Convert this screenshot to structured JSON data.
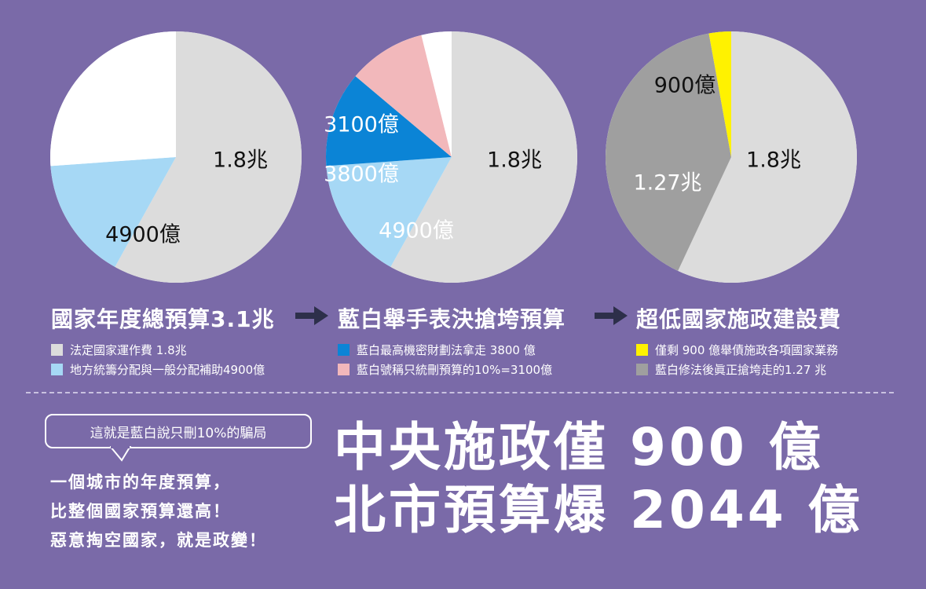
{
  "chart_data": [
    {
      "type": "pie",
      "slices": [
        {
          "label": "1.8兆",
          "value": 18000,
          "color": "#dcdcdc"
        },
        {
          "label": "4900億",
          "value": 4900,
          "color": "#a6d8f5"
        },
        {
          "label": "",
          "value": 8100,
          "color": "#ffffff"
        }
      ],
      "title": "國家年度總預算3.1兆",
      "legend": [
        {
          "text": "法定國家運作費 1.8兆",
          "color": "#dcdcdc"
        },
        {
          "text": "地方統籌分配與一般分配補助4900億",
          "color": "#a6d8f5"
        }
      ]
    },
    {
      "type": "pie",
      "slices": [
        {
          "label": "1.8兆",
          "value": 18000,
          "color": "#dcdcdc"
        },
        {
          "label": "4900億",
          "value": 4900,
          "color": "#a6d8f5"
        },
        {
          "label": "3800億",
          "value": 3800,
          "color": "#0b84d6"
        },
        {
          "label": "3100億",
          "value": 3100,
          "color": "#f2b8bb"
        },
        {
          "label": "",
          "value": 1200,
          "color": "#ffffff"
        }
      ],
      "title": "藍白舉手表決搶垮預算",
      "legend": [
        {
          "text": "藍白最高機密財劃法拿走 3800 億",
          "color": "#0b84d6"
        },
        {
          "text": "藍白號稱只統刪預算的10%=3100億",
          "color": "#f2b8bb"
        }
      ]
    },
    {
      "type": "pie",
      "slices": [
        {
          "label": "1.8兆",
          "value": 18000,
          "color": "#dcdcdc"
        },
        {
          "label": "1.27兆",
          "value": 12700,
          "color": "#9f9f9f"
        },
        {
          "label": "900億",
          "value": 900,
          "color": "#fff200"
        }
      ],
      "title": "超低國家施政建設費",
      "legend": [
        {
          "text": "僅剩 900 億舉債施政各項國家業務",
          "color": "#fff200"
        },
        {
          "text": "藍白修法後眞正搶垮走的1.27 兆",
          "color": "#9f9f9f"
        }
      ]
    }
  ],
  "bottom": {
    "bubble": "這就是藍白說只刪10%的騙局",
    "lines": [
      "一個城市的年度預算，",
      "比整個國家預算還高！",
      "惡意掏空國家，就是政變！"
    ],
    "headline": [
      "中央施政僅 900 億",
      "北市預算爆 2044 億"
    ]
  },
  "colors": {
    "background": "#7a6aa8",
    "arrow": "#2d2f4a"
  }
}
